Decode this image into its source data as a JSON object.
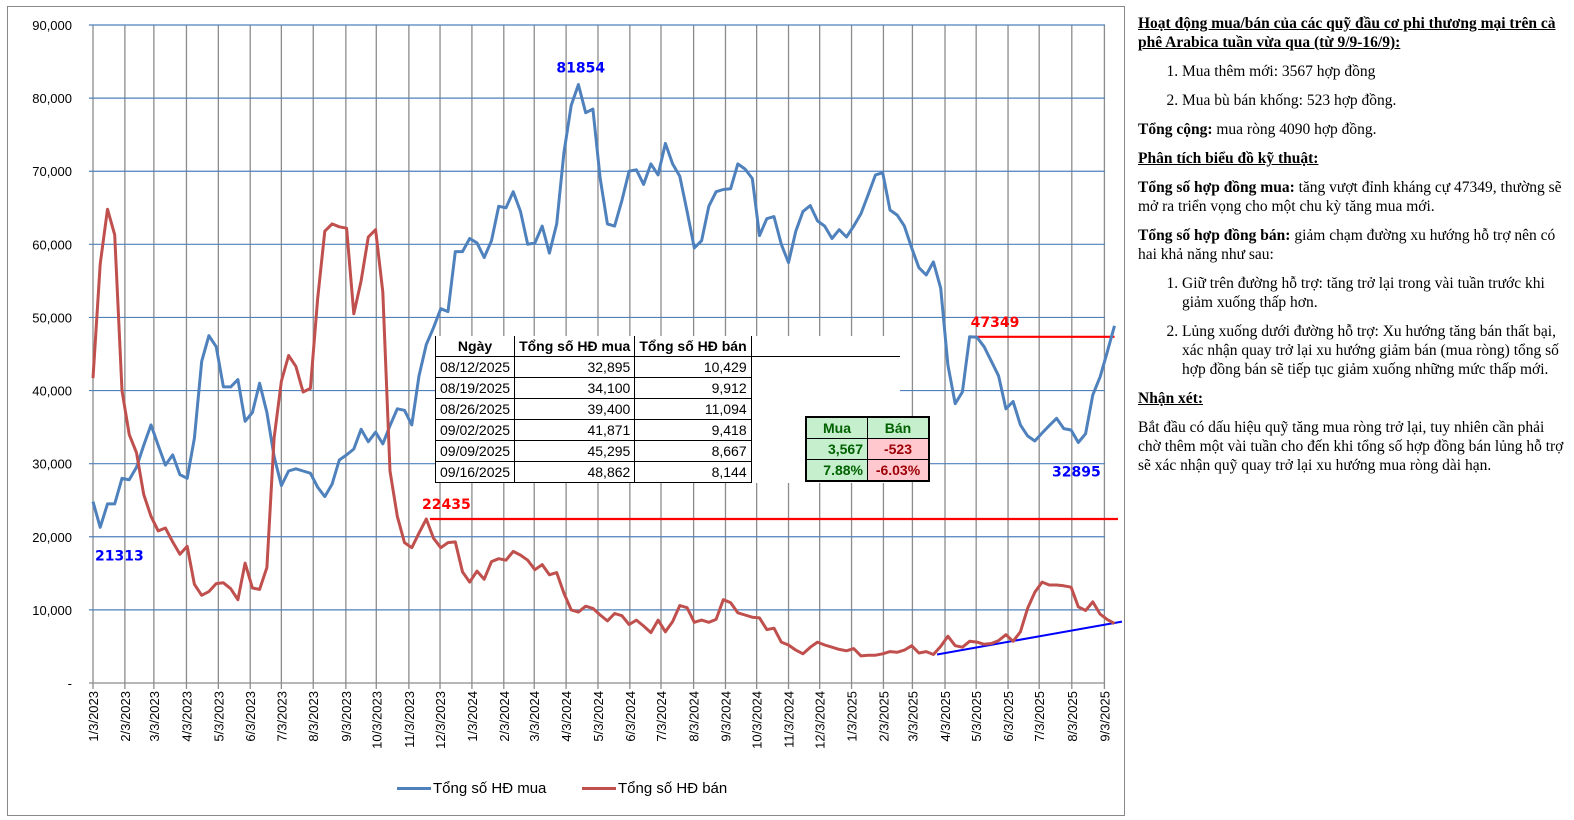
{
  "chart_data": {
    "type": "line",
    "title": "",
    "xlabel": "",
    "ylabel": "",
    "ylim": [
      0,
      90000
    ],
    "y_ticks": [
      "-",
      "10,000",
      "20,000",
      "30,000",
      "40,000",
      "50,000",
      "60,000",
      "70,000",
      "80,000",
      "90,000"
    ],
    "y_tick_values": [
      0,
      10000,
      20000,
      30000,
      40000,
      50000,
      60000,
      70000,
      80000,
      90000
    ],
    "x_tick_labels": [
      "1/3/2023",
      "2/3/2023",
      "3/3/2023",
      "4/3/2023",
      "5/3/2023",
      "6/3/2023",
      "7/3/2023",
      "8/3/2023",
      "9/3/2023",
      "10/3/2023",
      "11/3/2023",
      "12/3/2023",
      "1/3/2024",
      "2/3/2024",
      "3/3/2024",
      "4/3/2024",
      "5/3/2024",
      "6/3/2024",
      "7/3/2024",
      "8/3/2024",
      "9/3/2024",
      "10/3/2024",
      "11/3/2024",
      "12/3/2024",
      "1/3/2025",
      "2/3/2025",
      "3/3/2025",
      "4/3/2025",
      "5/3/2025",
      "6/3/2025",
      "7/3/2025",
      "8/3/2025",
      "9/3/2025"
    ],
    "x_tick_week_index": [
      0,
      4.4,
      8.4,
      12.9,
      17.3,
      21.7,
      26,
      30.4,
      34.9,
      39.1,
      43.6,
      47.9,
      52.3,
      56.7,
      60.9,
      65.3,
      69.7,
      74.1,
      78.4,
      82.9,
      87.3,
      91.6,
      96,
      100.3,
      104.7,
      109.1,
      113.1,
      117.6,
      121.9,
      126.3,
      130.6,
      135.1,
      139.6
    ],
    "x_start": "1/3/2023",
    "x_end": "9/16/2025",
    "frequency": "weekly",
    "legend_position": "bottom",
    "grid": true,
    "series": [
      {
        "name": "Tổng số HĐ mua",
        "color": "#4f81bd",
        "values": [
          24800,
          21300,
          24500,
          24500,
          28000,
          27800,
          29500,
          32500,
          35300,
          32500,
          29800,
          31200,
          28500,
          28000,
          33500,
          44000,
          47500,
          46000,
          40500,
          40500,
          41500,
          35800,
          37000,
          41000,
          37000,
          31000,
          27000,
          29000,
          29300,
          29000,
          28700,
          26800,
          25500,
          27200,
          30500,
          31200,
          32000,
          34700,
          33000,
          34300,
          32700,
          35200,
          37500,
          37300,
          35300,
          42000,
          46300,
          48600,
          51200,
          50800,
          59000,
          59000,
          60800,
          60200,
          58200,
          60500,
          65200,
          65000,
          67200,
          64500,
          60000,
          60200,
          62500,
          58800,
          62800,
          72500,
          79000,
          81854,
          78000,
          78500,
          69000,
          62800,
          62500,
          66000,
          70000,
          70200,
          68200,
          71000,
          69500,
          73800,
          71000,
          69300,
          64500,
          59500,
          60500,
          65200,
          67200,
          67500,
          67600,
          71000,
          70300,
          69000,
          61200,
          63500,
          63800,
          60000,
          57500,
          61800,
          64500,
          65300,
          63200,
          62500,
          60800,
          62000,
          61000,
          62500,
          64200,
          66800,
          69500,
          69800,
          64700,
          64000,
          62500,
          59500,
          56800,
          55800,
          57600,
          54000,
          43500,
          38200,
          39800,
          47349,
          47300,
          46000,
          44000,
          42000,
          37500,
          38500,
          35300,
          33800,
          33100,
          34200,
          35200,
          36200,
          34800,
          34600,
          32895,
          34100,
          39400,
          41871,
          45295,
          48862
        ]
      },
      {
        "name": "Tổng số HĐ bán",
        "color": "#c0504d",
        "values": [
          41700,
          57300,
          64800,
          61300,
          40000,
          34000,
          31500,
          25800,
          22800,
          20800,
          21200,
          19300,
          17600,
          18700,
          13500,
          12000,
          12500,
          13600,
          13700,
          12900,
          11400,
          16400,
          13000,
          12800,
          15800,
          33500,
          41300,
          44800,
          43300,
          39800,
          40300,
          52500,
          61800,
          62800,
          62400,
          62200,
          50500,
          55000,
          61000,
          62000,
          53500,
          29000,
          22800,
          19200,
          18500,
          20500,
          22435,
          19800,
          18500,
          19200,
          19300,
          15200,
          13800,
          15300,
          14200,
          16600,
          17000,
          16800,
          18000,
          17500,
          16800,
          15500,
          16200,
          14800,
          15100,
          12300,
          10000,
          9700,
          10500,
          10200,
          9300,
          8500,
          9500,
          9200,
          8000,
          8600,
          7800,
          6900,
          8600,
          7000,
          8400,
          10600,
          10300,
          8300,
          8600,
          8300,
          8700,
          11400,
          11000,
          9600,
          9300,
          9000,
          8900,
          7300,
          7500,
          5600,
          5200,
          4500,
          4000,
          4900,
          5600,
          5200,
          4900,
          4600,
          4400,
          4700,
          3700,
          3800,
          3800,
          4000,
          4300,
          4200,
          4500,
          5100,
          4100,
          4300,
          3900,
          5000,
          6400,
          5100,
          4900,
          5700,
          5600,
          5300,
          5400,
          5800,
          6600,
          5700,
          7000,
          10200,
          12400,
          13800,
          13400,
          13400,
          13300,
          13100,
          10429,
          9912,
          11094,
          9418,
          8667,
          8144
        ]
      }
    ],
    "annotations": [
      {
        "text": "81854",
        "color": "#0000ff",
        "series": "Tổng số HĐ mua",
        "week_index": 67
      },
      {
        "text": "21313",
        "color": "#0000ff",
        "series": "Tổng số HĐ mua",
        "week_index": 1
      },
      {
        "text": "32895",
        "color": "#0000ff",
        "series": "Tổng số HĐ mua",
        "week_index": 136
      },
      {
        "text": "47349",
        "color": "#ff0000",
        "kind": "horizontal-resistance",
        "value": 47349,
        "from_week_index": 121,
        "to_week_index": 141
      },
      {
        "text": "22435",
        "color": "#ff0000",
        "kind": "horizontal-resistance",
        "value": 22435,
        "from_week_index": 46.5,
        "to_week_index": 143.5
      }
    ],
    "trendline": {
      "color": "#0000ff",
      "from": {
        "week_index": 116.5,
        "value": 3900
      },
      "to": {
        "week_index": 143.5,
        "value": 8400
      }
    }
  },
  "data_table": {
    "headers": [
      "Ngày",
      "Tổng số HĐ mua",
      "Tổng số HĐ bán"
    ],
    "rows": [
      [
        "08/12/2025",
        "32,895",
        "10,429"
      ],
      [
        "08/19/2025",
        "34,100",
        "9,912"
      ],
      [
        "08/26/2025",
        "39,400",
        "11,094"
      ],
      [
        "09/02/2025",
        "41,871",
        "9,418"
      ],
      [
        "09/09/2025",
        "45,295",
        "8,667"
      ],
      [
        "09/16/2025",
        "48,862",
        "8,144"
      ]
    ]
  },
  "summary_table": {
    "headers": [
      "Mua",
      "Bán"
    ],
    "change": [
      "3,567",
      "-523"
    ],
    "pct": [
      "7.88%",
      "-6.03%"
    ]
  },
  "notes": {
    "heading": "Hoạt động mua/bán của các quỹ đầu cơ phi thương mại trên cà phê Arabica tuần vừa qua (từ 9/9-16/9):",
    "activity": [
      "Mua thêm mới: 3567 hợp đồng",
      "Mua bù bán khống: 523 hợp đồng."
    ],
    "total_label": "Tổng cộng:",
    "total_text": " mua ròng 4090 hợp đồng.",
    "tech_heading": "Phân tích biểu đồ kỹ thuật:",
    "buy_label": "Tổng số hợp đồng mua:",
    "buy_text": " tăng vượt đỉnh kháng cự 47349, thường sẽ mở ra triển vọng cho một chu kỳ tăng mua mới.",
    "sell_label": "Tổng số hợp đồng bán:",
    "sell_text": "  giảm chạm đường xu hướng hỗ trợ nên có hai khả năng như sau:",
    "scenarios": [
      "Giữ trên đường hỗ trợ: tăng trở lại trong vài tuần trước khi giảm xuống thấp hơn.",
      "Lủng xuống dưới đường hỗ trợ: Xu hướng tăng bán thất bại, xác nhận quay trở lại xu hướng giảm bán (mua ròng) tổng số hợp đồng bán sẽ  tiếp tục giảm xuống những mức thấp mới."
    ],
    "comment_heading": "Nhận xét:",
    "comment_text": "Bắt đầu có dấu hiệu quỹ tăng mua ròng trở lại, tuy nhiên cần phải chờ thêm một vài tuần cho đến khi tổng số hợp đồng bán lủng hỗ trợ sẽ xác nhận quỹ quay trở lại xu hướng mua ròng dài hạn."
  }
}
